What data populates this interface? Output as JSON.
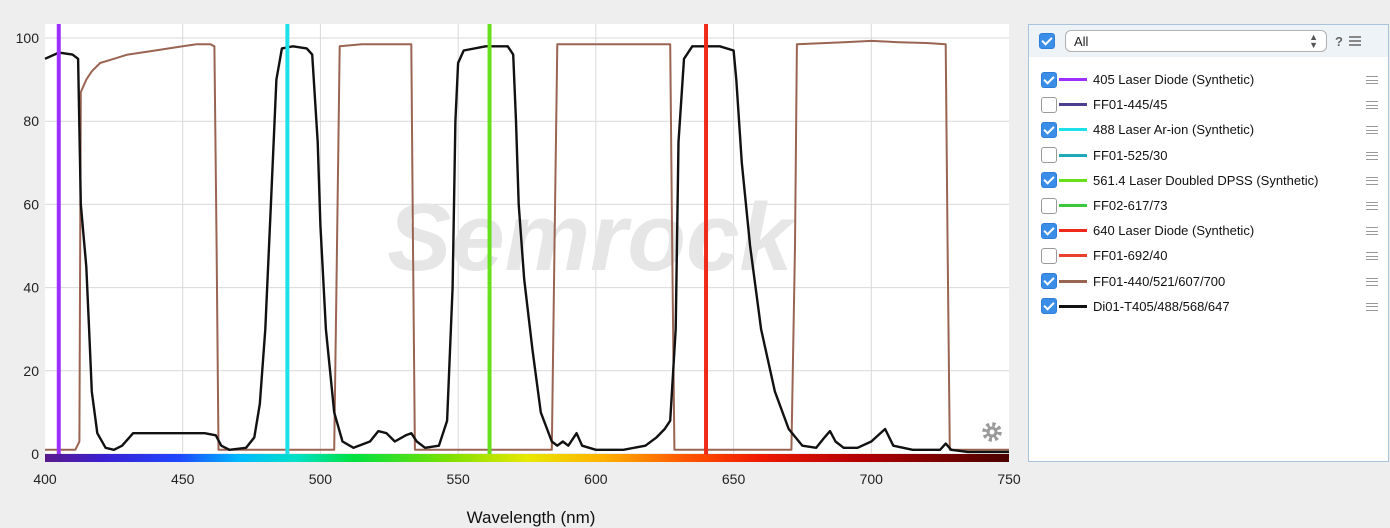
{
  "chart_data": {
    "type": "line",
    "title": "",
    "xlabel": "Wavelength (nm)",
    "ylabel": "",
    "xlim": [
      400,
      750
    ],
    "ylim": [
      0,
      100
    ],
    "x_ticks": [
      400,
      450,
      500,
      550,
      600,
      650,
      700,
      750
    ],
    "y_ticks": [
      0,
      20,
      40,
      60,
      80,
      100
    ],
    "grid": true,
    "legend_placement": "right panel",
    "watermark": "Semrock",
    "series": [
      {
        "name": "405 Laser Diode (Synthetic)",
        "kind": "laser-line",
        "color": "#9b30ff",
        "wavelength": 405,
        "visible": true
      },
      {
        "name": "FF01-445/45",
        "kind": "filter",
        "color": "#4b3f8f",
        "visible": false
      },
      {
        "name": "488 Laser Ar-ion (Synthetic)",
        "kind": "laser-line",
        "color": "#1de0e8",
        "wavelength": 488,
        "visible": true
      },
      {
        "name": "FF01-525/30",
        "kind": "filter",
        "color": "#1fa8b8",
        "visible": false
      },
      {
        "name": "561.4 Laser Doubled DPSS (Synthetic)",
        "kind": "laser-line",
        "color": "#66e01a",
        "wavelength": 561.4,
        "visible": true
      },
      {
        "name": "FF02-617/73",
        "kind": "filter",
        "color": "#3cc83c",
        "visible": false
      },
      {
        "name": "640 Laser Diode (Synthetic)",
        "kind": "laser-line",
        "color": "#f02a1a",
        "wavelength": 640,
        "visible": true
      },
      {
        "name": "FF01-692/40",
        "kind": "filter",
        "color": "#e8402a",
        "visible": false
      },
      {
        "name": "FF01-440/521/607/700",
        "kind": "filter",
        "color": "#9a6452",
        "visible": true,
        "points": [
          [
            400,
            1
          ],
          [
            411,
            1
          ],
          [
            412.5,
            3
          ],
          [
            413,
            87
          ],
          [
            415,
            90
          ],
          [
            417,
            92
          ],
          [
            420,
            94
          ],
          [
            425,
            95
          ],
          [
            430,
            96
          ],
          [
            440,
            97
          ],
          [
            450,
            98
          ],
          [
            455,
            98.5
          ],
          [
            460,
            98.5
          ],
          [
            461.5,
            98
          ],
          [
            462.3,
            50
          ],
          [
            463,
            1
          ],
          [
            500,
            1
          ],
          [
            505,
            1
          ],
          [
            506,
            50
          ],
          [
            507,
            98
          ],
          [
            515,
            98.5
          ],
          [
            525,
            98.5
          ],
          [
            533,
            98.5
          ],
          [
            533.6,
            50
          ],
          [
            534.3,
            1
          ],
          [
            584,
            1
          ],
          [
            585,
            50
          ],
          [
            586,
            98.5
          ],
          [
            600,
            98.5
          ],
          [
            610,
            98.5
          ],
          [
            620,
            98.5
          ],
          [
            627,
            98.5
          ],
          [
            627.7,
            50
          ],
          [
            628.5,
            1
          ],
          [
            671,
            1
          ],
          [
            672.3,
            50
          ],
          [
            673,
            98.5
          ],
          [
            690,
            99
          ],
          [
            700,
            99.3
          ],
          [
            710,
            99
          ],
          [
            720,
            98.8
          ],
          [
            727,
            98.5
          ],
          [
            727.7,
            50
          ],
          [
            728.5,
            1
          ],
          [
            750,
            1
          ]
        ]
      },
      {
        "name": "Di01-T405/488/568/647",
        "kind": "filter",
        "color": "#111111",
        "visible": true,
        "points": [
          [
            400,
            95
          ],
          [
            405,
            96.5
          ],
          [
            410,
            96
          ],
          [
            412,
            95
          ],
          [
            413,
            60
          ],
          [
            415,
            45
          ],
          [
            416,
            30
          ],
          [
            417,
            15
          ],
          [
            419,
            5
          ],
          [
            422,
            1.5
          ],
          [
            425,
            1
          ],
          [
            428,
            2
          ],
          [
            432,
            5
          ],
          [
            440,
            5
          ],
          [
            450,
            5
          ],
          [
            458,
            5
          ],
          [
            462,
            4.5
          ],
          [
            464,
            2
          ],
          [
            467,
            1
          ],
          [
            473,
            1.5
          ],
          [
            476,
            4
          ],
          [
            478,
            12
          ],
          [
            480,
            30
          ],
          [
            482,
            60
          ],
          [
            484,
            90
          ],
          [
            486,
            97.5
          ],
          [
            490,
            98
          ],
          [
            495,
            97.5
          ],
          [
            497,
            96
          ],
          [
            499,
            75
          ],
          [
            500,
            55
          ],
          [
            502,
            30
          ],
          [
            505,
            10
          ],
          [
            508,
            3
          ],
          [
            512,
            1.5
          ],
          [
            518,
            3
          ],
          [
            521,
            5.5
          ],
          [
            524,
            5
          ],
          [
            527,
            3
          ],
          [
            531,
            4.5
          ],
          [
            533,
            5
          ],
          [
            535,
            3
          ],
          [
            538,
            1.5
          ],
          [
            543,
            2
          ],
          [
            546,
            8
          ],
          [
            548,
            40
          ],
          [
            549,
            80
          ],
          [
            550,
            94
          ],
          [
            552,
            97
          ],
          [
            560,
            98
          ],
          [
            568,
            98
          ],
          [
            570,
            96
          ],
          [
            571,
            80
          ],
          [
            572,
            60
          ],
          [
            574,
            42
          ],
          [
            577,
            25
          ],
          [
            580,
            10
          ],
          [
            584,
            3
          ],
          [
            586,
            2
          ],
          [
            588,
            3
          ],
          [
            590,
            2
          ],
          [
            593,
            5
          ],
          [
            595,
            2
          ],
          [
            600,
            1
          ],
          [
            610,
            1
          ],
          [
            618,
            2
          ],
          [
            622,
            4
          ],
          [
            625,
            6
          ],
          [
            627,
            8
          ],
          [
            629,
            30
          ],
          [
            630,
            75
          ],
          [
            632,
            95
          ],
          [
            635,
            98
          ],
          [
            645,
            98
          ],
          [
            650,
            97
          ],
          [
            651,
            90
          ],
          [
            653,
            70
          ],
          [
            656,
            50
          ],
          [
            660,
            30
          ],
          [
            665,
            15
          ],
          [
            670,
            6
          ],
          [
            675,
            2
          ],
          [
            680,
            1.5
          ],
          [
            683,
            4
          ],
          [
            685,
            5.5
          ],
          [
            687,
            3
          ],
          [
            690,
            1.5
          ],
          [
            695,
            1.5
          ],
          [
            700,
            3
          ],
          [
            705,
            6
          ],
          [
            708,
            2
          ],
          [
            715,
            1
          ],
          [
            725,
            1
          ],
          [
            727,
            2.5
          ],
          [
            729,
            1
          ],
          [
            735,
            0.5
          ],
          [
            750,
            0.5
          ]
        ]
      }
    ]
  },
  "panel": {
    "select_value": "All",
    "help_label": "?",
    "header_checked": true
  }
}
